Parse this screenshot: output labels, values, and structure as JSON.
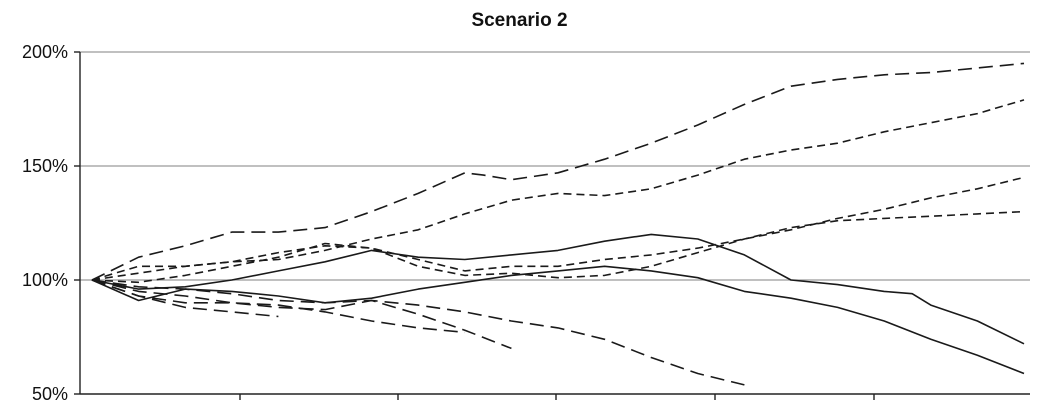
{
  "chart_data": {
    "type": "line",
    "title": "Scenario 2",
    "xlabel": "",
    "ylabel": "",
    "ylim": [
      50,
      200
    ],
    "y_tick_labels": [
      "50%",
      "100%",
      "150%",
      "200%"
    ],
    "y_ticks": [
      50,
      100,
      150,
      200
    ],
    "grid": true,
    "legend": "none",
    "xlim": [
      0,
      100
    ],
    "series": [
      {
        "style": "dashed-long",
        "x": [
          0,
          5,
          10,
          15,
          20,
          25,
          30,
          35,
          40,
          42,
          45,
          50,
          55,
          60,
          65,
          70,
          75,
          80,
          85,
          90,
          95,
          100
        ],
        "values": [
          100,
          110,
          115,
          121,
          121,
          123,
          130,
          138,
          147,
          146,
          144,
          147,
          153,
          160,
          168,
          177,
          185,
          188,
          190,
          191,
          193,
          195
        ]
      },
      {
        "style": "dashed",
        "x": [
          0,
          10,
          15,
          20,
          25,
          30,
          35,
          40,
          45,
          50,
          55,
          60,
          65,
          70,
          75,
          80,
          85,
          90,
          95,
          100
        ],
        "values": [
          100,
          106,
          108,
          109,
          113,
          118,
          122,
          129,
          135,
          138,
          137,
          140,
          146,
          153,
          157,
          160,
          165,
          169,
          173,
          179
        ]
      },
      {
        "style": "dashed",
        "x": [
          0,
          5,
          10,
          15,
          20,
          25,
          30,
          35,
          40,
          45,
          50,
          55,
          60,
          65,
          70,
          75,
          80,
          85,
          90,
          95,
          100
        ],
        "values": [
          100,
          106,
          106,
          108,
          112,
          115,
          114,
          109,
          104,
          106,
          106,
          109,
          111,
          114,
          118,
          122,
          127,
          131,
          136,
          140,
          145
        ]
      },
      {
        "style": "dashed",
        "x": [
          0,
          5,
          10,
          15,
          20,
          25,
          30,
          35,
          40,
          45,
          50,
          55,
          60,
          65,
          70,
          75,
          80,
          85,
          90,
          95,
          100
        ],
        "values": [
          100,
          99,
          102,
          106,
          110,
          116,
          114,
          106,
          102,
          103,
          101,
          102,
          106,
          112,
          118,
          123,
          126,
          127,
          128,
          129,
          130
        ]
      },
      {
        "style": "solid",
        "x": [
          0,
          5,
          10,
          15,
          20,
          25,
          30,
          35,
          40,
          45,
          50,
          55,
          60,
          65,
          70,
          75,
          80,
          85,
          88,
          90,
          95,
          100
        ],
        "values": [
          100,
          96,
          97,
          100,
          104,
          108,
          113,
          110,
          109,
          111,
          113,
          117,
          120,
          118,
          111,
          100,
          98,
          95,
          94,
          89,
          82,
          72
        ]
      },
      {
        "style": "solid",
        "x": [
          0,
          5,
          10,
          15,
          20,
          25,
          30,
          35,
          40,
          45,
          50,
          55,
          60,
          65,
          70,
          75,
          80,
          85,
          90,
          95,
          100
        ],
        "values": [
          100,
          91,
          96,
          95,
          93,
          90,
          92,
          96,
          99,
          102,
          104,
          106,
          104,
          101,
          95,
          92,
          88,
          82,
          74,
          67,
          59
        ]
      },
      {
        "style": "dashed-long",
        "x": [
          0,
          5,
          10,
          15,
          20,
          25,
          30,
          35,
          40,
          45,
          50,
          55,
          60,
          65,
          70
        ],
        "values": [
          100,
          97,
          96,
          94,
          91,
          90,
          91,
          89,
          86,
          82,
          79,
          74,
          66,
          59,
          54
        ]
      },
      {
        "style": "dashed-long",
        "x": [
          0,
          5,
          10,
          15,
          20,
          25,
          30,
          35,
          40,
          45
        ],
        "values": [
          100,
          95,
          93,
          90,
          88,
          87,
          91,
          85,
          78,
          70
        ]
      },
      {
        "style": "dashed-long",
        "x": [
          0,
          5,
          10,
          15,
          20,
          25,
          30,
          35,
          40
        ],
        "values": [
          100,
          93,
          90,
          90,
          89,
          86,
          82,
          79,
          77
        ]
      },
      {
        "style": "dashed-long",
        "x": [
          0,
          5,
          10,
          15,
          20
        ],
        "values": [
          100,
          93,
          88,
          86,
          84
        ]
      }
    ]
  }
}
